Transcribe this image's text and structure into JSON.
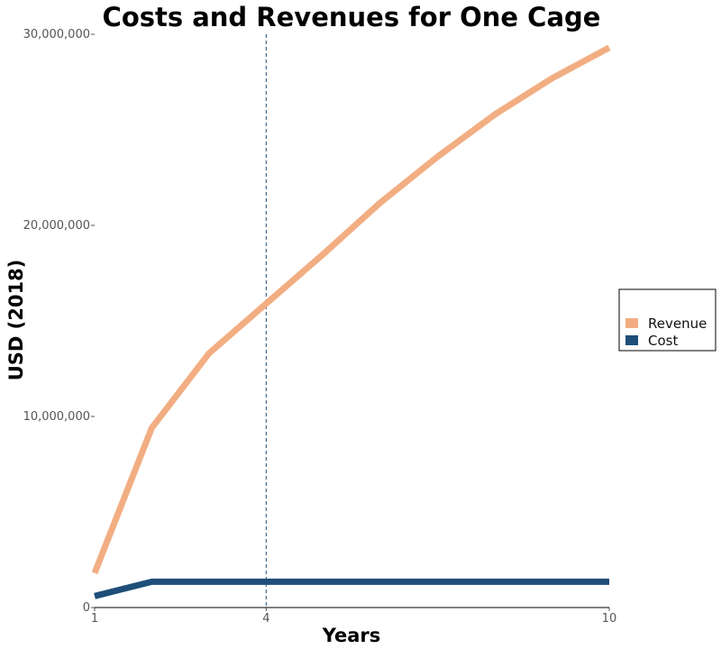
{
  "chart_data": {
    "type": "line",
    "title": "Costs and Revenues for One Cage",
    "xlabel": "Years",
    "ylabel": "USD (2018)",
    "xlim": [
      1,
      10
    ],
    "ylim": [
      0,
      30000000
    ],
    "x_ticks": [
      1,
      4,
      10
    ],
    "x_tick_labels": [
      "1",
      "4",
      "10"
    ],
    "y_ticks": [
      0,
      10000000,
      20000000,
      30000000
    ],
    "y_tick_labels": [
      "0",
      "10,000,000",
      "20,000,000",
      "30,000,000"
    ],
    "reference_line": {
      "x": 4,
      "style": "dashed",
      "color": "#1f4e79"
    },
    "grid": false,
    "legend_position": "right",
    "series": [
      {
        "name": "Revenue",
        "color": "#f2ae82",
        "x": [
          1,
          2,
          3,
          4,
          5,
          6,
          7,
          8,
          9,
          10
        ],
        "y": [
          1800000,
          9400000,
          13300000,
          15900000,
          18500000,
          21200000,
          23600000,
          25800000,
          27700000,
          29300000
        ]
      },
      {
        "name": "Cost",
        "color": "#1f4e79",
        "x": [
          1,
          2,
          3,
          4,
          5,
          6,
          7,
          8,
          9,
          10
        ],
        "y": [
          600000,
          1350000,
          1350000,
          1350000,
          1350000,
          1350000,
          1350000,
          1350000,
          1350000,
          1350000
        ]
      }
    ]
  }
}
